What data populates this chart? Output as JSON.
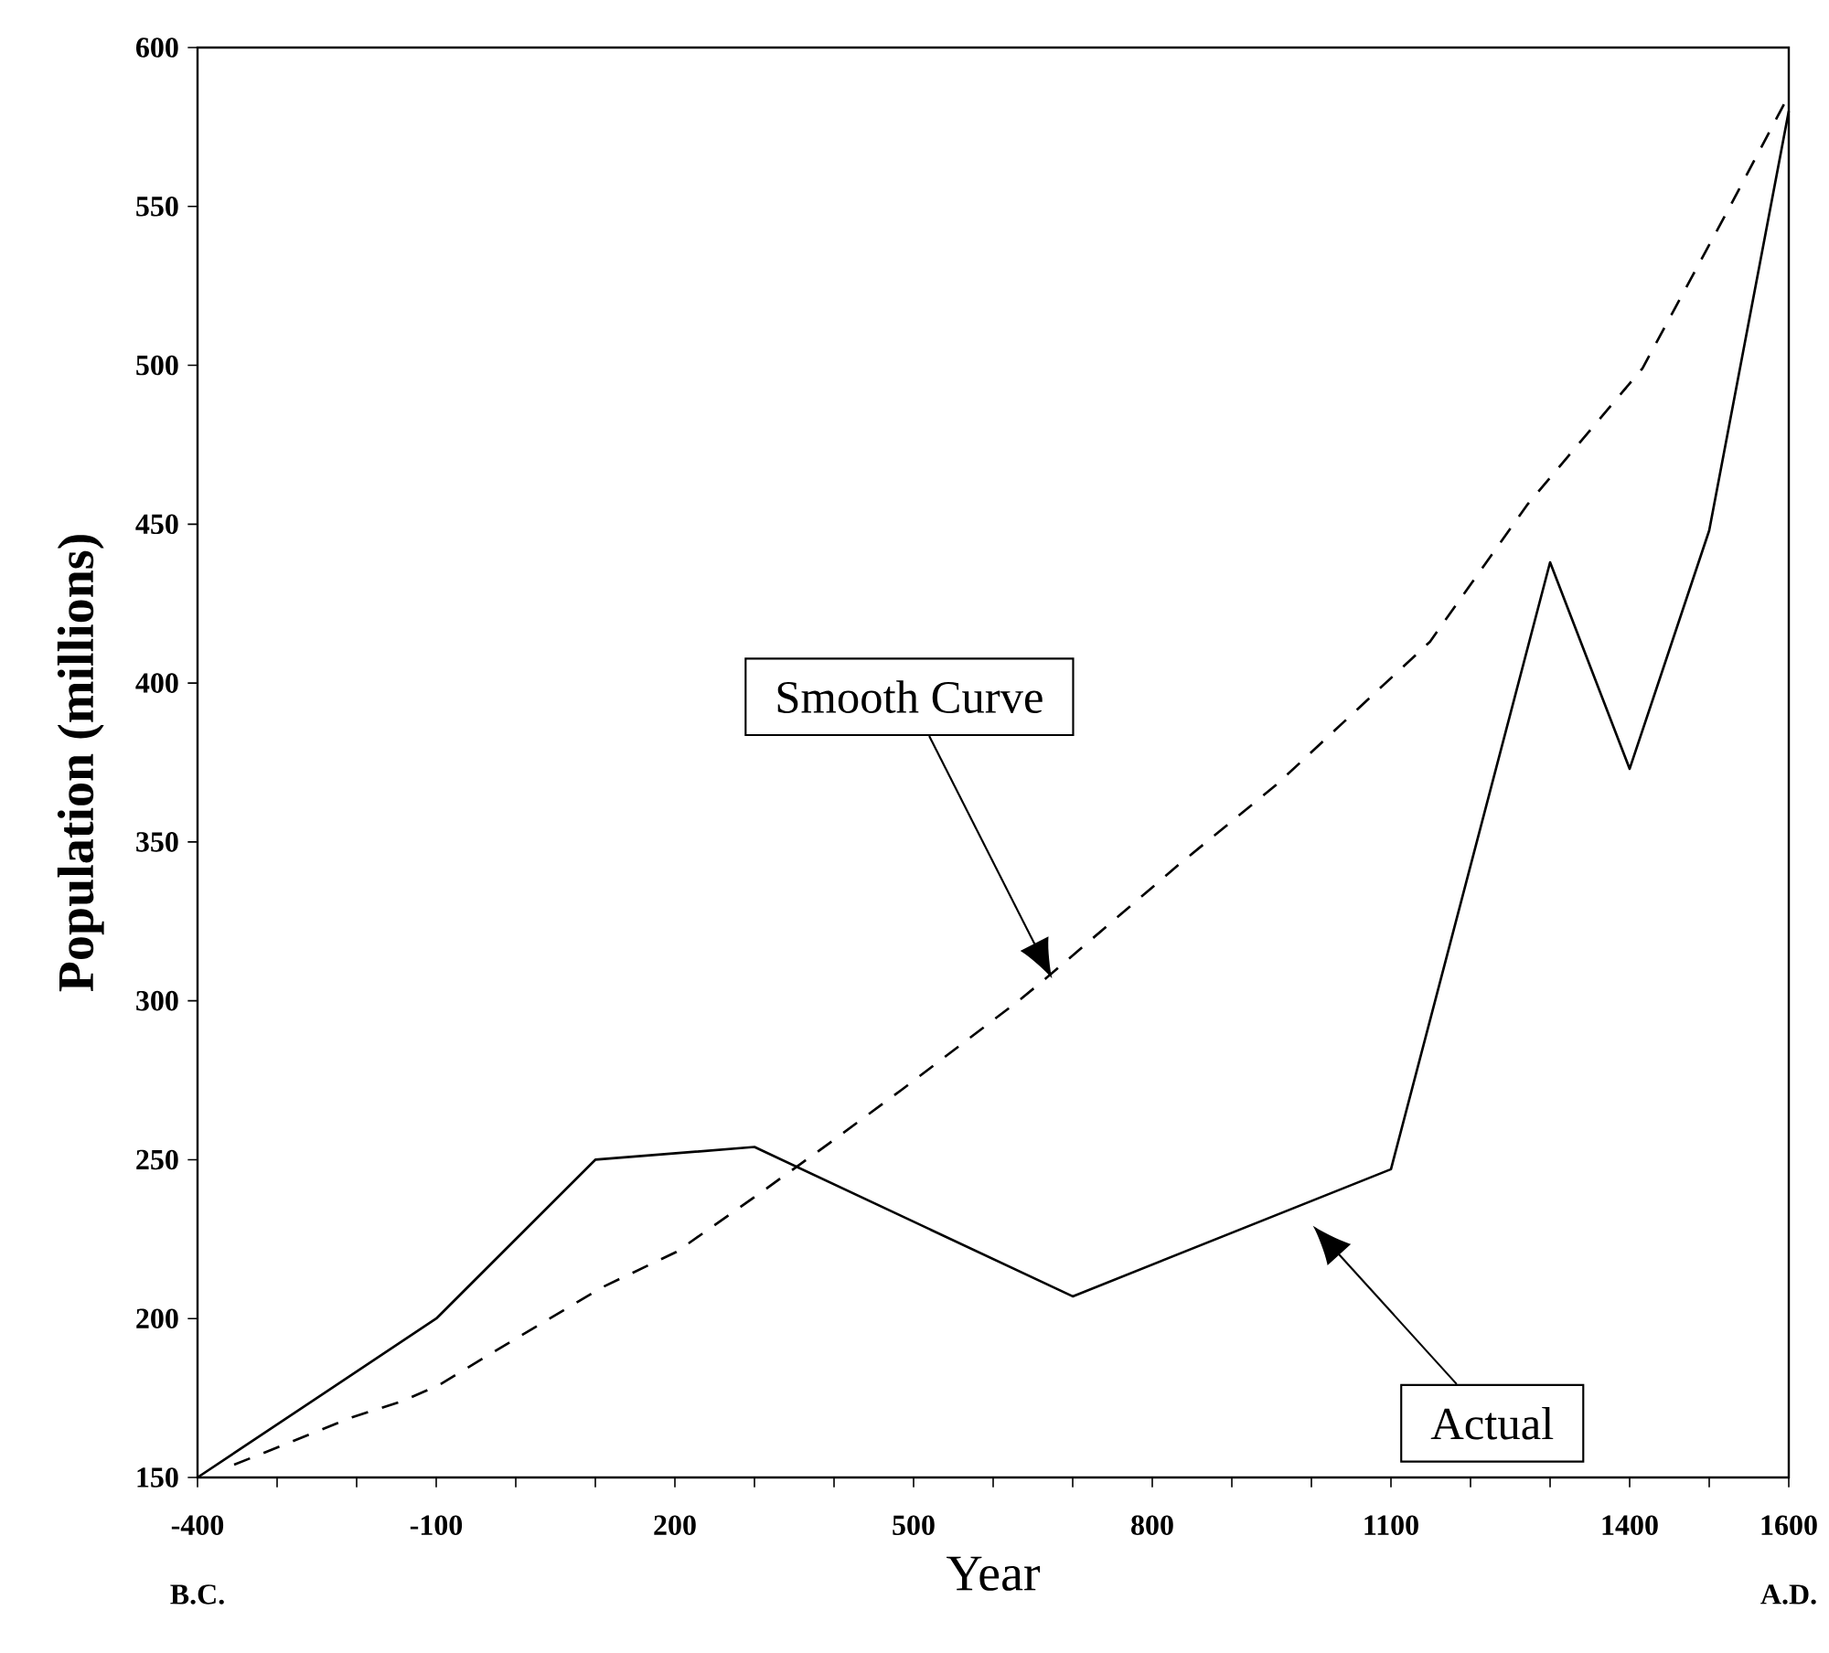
{
  "chart_data": {
    "type": "line",
    "xlabel": "Year",
    "ylabel": "Population (millions)",
    "xlim": [
      -400,
      1600
    ],
    "ylim": [
      150,
      600
    ],
    "xticks": [
      -400,
      {
        "value": -300,
        "label": null
      },
      {
        "value": -200,
        "label": null
      },
      -100,
      {
        "value": 0,
        "label": null
      },
      {
        "value": 100,
        "label": null
      },
      200,
      {
        "value": 300,
        "label": null
      },
      {
        "value": 400,
        "label": null
      },
      500,
      {
        "value": 600,
        "label": null
      },
      {
        "value": 700,
        "label": null
      },
      800,
      {
        "value": 900,
        "label": null
      },
      {
        "value": 1000,
        "label": null
      },
      1100,
      {
        "value": 1200,
        "label": null
      },
      {
        "value": 1300,
        "label": null
      },
      1400,
      {
        "value": 1500,
        "label": null
      },
      1600
    ],
    "yticks": [
      150,
      200,
      250,
      300,
      350,
      400,
      450,
      500,
      550,
      600
    ],
    "series": [
      {
        "color": "#000000",
        "line_style": "solid",
        "x": [
          -400,
          -100,
          100,
          300,
          700,
          1100,
          1300,
          1400,
          1500,
          1600
        ],
        "values": [
          150,
          200,
          250,
          254,
          207,
          247,
          438,
          373,
          448,
          580
        ]
      },
      {
        "color": "#000000",
        "line_style": "dashed",
        "x": [
          -354,
          -205,
          -143,
          -97,
          2,
          110,
          202,
          310,
          393,
          485,
          632,
          666,
          834,
          956,
          1149,
          1271,
          1416,
          1524,
          1600
        ],
        "values": [
          154,
          169,
          174,
          179,
          194,
          210,
          221,
          240,
          255,
          272,
          300,
          307,
          343,
          368,
          413,
          456,
          499,
          549,
          585
        ]
      }
    ],
    "annotations": [
      "Smooth Curve",
      "Actual",
      "B.C.",
      "A.D."
    ]
  }
}
